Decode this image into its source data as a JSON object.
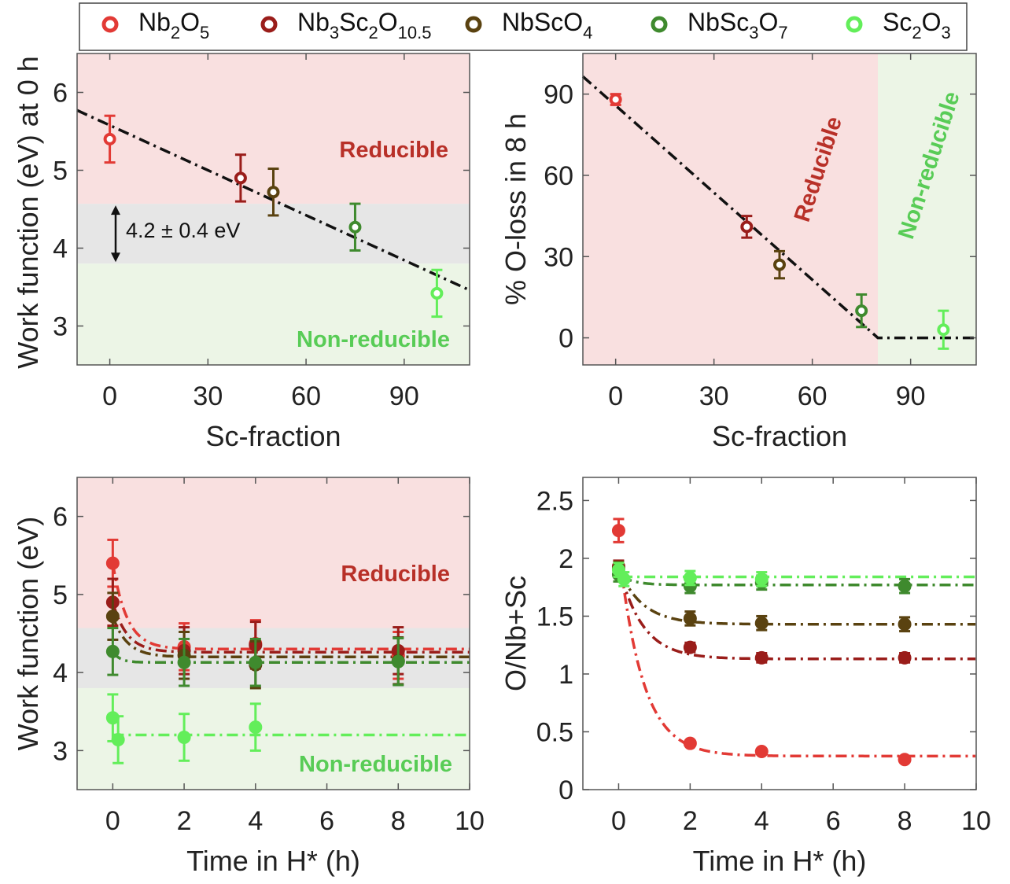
{
  "colors": {
    "Nb2O5": "#e23a35",
    "Nb3Sc2O10.5": "#9a1d1a",
    "NbScO4": "#5a4210",
    "NbSc3O7": "#3f8a2e",
    "Sc2O3": "#63ee5a",
    "reducible_fill": "#f9e0e0",
    "gray_band": "#e6e6e6",
    "nonreducible_fill": "#ecf5e6",
    "reducible_text": "#b83028",
    "nonreducible_text": "#58cc56",
    "fit": "#111111"
  },
  "legend": [
    {
      "key": "Nb2O5",
      "parts": [
        [
          "Nb",
          ""
        ],
        [
          "2",
          "sub"
        ],
        [
          "O",
          ""
        ],
        [
          "5",
          "sub"
        ]
      ]
    },
    {
      "key": "Nb3Sc2O10.5",
      "parts": [
        [
          "Nb",
          ""
        ],
        [
          "3",
          "sub"
        ],
        [
          "Sc",
          ""
        ],
        [
          "2",
          "sub"
        ],
        [
          "O",
          ""
        ],
        [
          "10.5",
          "sub"
        ]
      ]
    },
    {
      "key": "NbScO4",
      "parts": [
        [
          "NbScO",
          ""
        ],
        [
          "4",
          "sub"
        ]
      ]
    },
    {
      "key": "NbSc3O7",
      "parts": [
        [
          "NbSc",
          ""
        ],
        [
          "3",
          "sub"
        ],
        [
          "O",
          ""
        ],
        [
          "7",
          "sub"
        ]
      ]
    },
    {
      "key": "Sc2O3",
      "parts": [
        [
          "Sc",
          ""
        ],
        [
          "2",
          "sub"
        ],
        [
          "O",
          ""
        ],
        [
          "3",
          "sub"
        ]
      ]
    }
  ],
  "chart_data": [
    {
      "id": "wf0",
      "type": "scatter",
      "xlabel": "Sc-fraction",
      "ylabel": "Work function (eV) at 0 h",
      "xlim": [
        -10,
        110
      ],
      "ylim": [
        2.5,
        6.5
      ],
      "xticks": [
        "0",
        "30",
        "60",
        "90"
      ],
      "yticks": [
        "3",
        "4",
        "5",
        "6"
      ],
      "regions": [
        {
          "y": [
            4.57,
            6.5
          ],
          "fill": "reducible_fill",
          "label": "Reducible"
        },
        {
          "y": [
            3.8,
            4.57
          ],
          "fill": "gray_band",
          "label": ""
        },
        {
          "y": [
            2.5,
            3.8
          ],
          "fill": "nonreducible_fill",
          "label": "Non-reducible"
        }
      ],
      "annotation": "4.2 ± 0.4 eV",
      "fit": {
        "style": "dashdot",
        "x": [
          -10,
          110
        ],
        "y": [
          5.77,
          3.46
        ]
      },
      "points": [
        {
          "key": "Nb2O5",
          "x": 0,
          "y": 5.4,
          "err": 0.3
        },
        {
          "key": "Nb3Sc2O10.5",
          "x": 40,
          "y": 4.9,
          "err": 0.3
        },
        {
          "key": "NbScO4",
          "x": 50,
          "y": 4.72,
          "err": 0.3
        },
        {
          "key": "NbSc3O7",
          "x": 75,
          "y": 4.27,
          "err": 0.3
        },
        {
          "key": "Sc2O3",
          "x": 100,
          "y": 3.42,
          "err": 0.3
        }
      ]
    },
    {
      "id": "oloss",
      "type": "scatter",
      "xlabel": "Sc-fraction",
      "ylabel": "% O-loss in 8 h",
      "xlim": [
        -10,
        110
      ],
      "ylim": [
        -10,
        105
      ],
      "xticks": [
        "0",
        "30",
        "60",
        "90"
      ],
      "yticks": [
        "0",
        "30",
        "60",
        "90"
      ],
      "regions": [
        {
          "x": [
            -10,
            80
          ],
          "fill": "reducible_fill",
          "label": "Reducible"
        },
        {
          "x": [
            80,
            110
          ],
          "fill": "nonreducible_fill",
          "label": "Non-reducible"
        }
      ],
      "fit": {
        "style": "dashdot",
        "x": [
          -10,
          80,
          110
        ],
        "y": [
          96.5,
          0,
          0
        ]
      },
      "points": [
        {
          "key": "Nb2O5",
          "x": 0,
          "y": 88,
          "err": 2
        },
        {
          "key": "Nb3Sc2O10.5",
          "x": 40,
          "y": 41,
          "err": 4
        },
        {
          "key": "NbScO4",
          "x": 50,
          "y": 27,
          "err": 5
        },
        {
          "key": "NbSc3O7",
          "x": 75,
          "y": 10,
          "err": 6
        },
        {
          "key": "Sc2O3",
          "x": 100,
          "y": 3,
          "err": 7
        }
      ]
    },
    {
      "id": "wft",
      "type": "line",
      "xlabel": "Time in H* (h)",
      "ylabel": "Work function (eV)",
      "xlim": [
        -1,
        10
      ],
      "ylim": [
        2.5,
        6.5
      ],
      "xticks": [
        "0",
        "2",
        "4",
        "6",
        "8",
        "10"
      ],
      "yticks": [
        "3",
        "4",
        "5",
        "6"
      ],
      "regions": [
        {
          "y": [
            4.57,
            6.5
          ],
          "fill": "reducible_fill",
          "label": "Reducible"
        },
        {
          "y": [
            3.8,
            4.57
          ],
          "fill": "gray_band",
          "label": ""
        },
        {
          "y": [
            2.5,
            3.8
          ],
          "fill": "nonreducible_fill",
          "label": "Non-reducible"
        }
      ],
      "series": [
        {
          "key": "Nb2O5",
          "x": [
            0,
            2,
            4,
            8
          ],
          "y": [
            5.4,
            4.33,
            4.37,
            4.22
          ],
          "err": [
            0.3,
            0.3,
            0.3,
            0.3
          ],
          "fit": {
            "a": 5.4,
            "b": 4.3,
            "k": 2.5
          }
        },
        {
          "key": "Nb3Sc2O10.5",
          "x": [
            0,
            2,
            4,
            8
          ],
          "y": [
            4.9,
            4.28,
            4.35,
            4.28
          ],
          "err": [
            0.3,
            0.3,
            0.3,
            0.3
          ],
          "fit": {
            "a": 4.9,
            "b": 4.26,
            "k": 2.5
          }
        },
        {
          "key": "NbScO4",
          "x": [
            0,
            2,
            4,
            8
          ],
          "y": [
            4.72,
            4.22,
            4.1,
            4.15
          ],
          "err": [
            0.3,
            0.3,
            0.3,
            0.3
          ],
          "fit": {
            "a": 4.72,
            "b": 4.2,
            "k": 2.5
          }
        },
        {
          "key": "NbSc3O7",
          "x": [
            0,
            2,
            4,
            8
          ],
          "y": [
            4.27,
            4.13,
            4.13,
            4.14
          ],
          "err": [
            0.3,
            0.3,
            0.3,
            0.3
          ],
          "fit": {
            "a": 4.27,
            "b": 4.13,
            "k": 5
          }
        },
        {
          "key": "Sc2O3",
          "x": [
            0,
            0.15,
            2,
            4
          ],
          "y": [
            3.42,
            3.14,
            3.17,
            3.3
          ],
          "err": [
            0.3,
            0.3,
            0.3,
            0.3
          ],
          "fit": {
            "a": 3.2,
            "b": 3.2,
            "k": 5
          }
        }
      ]
    },
    {
      "id": "onbsc",
      "type": "line",
      "xlabel": "Time in H* (h)",
      "ylabel": "O/Nb+Sc",
      "xlim": [
        -1,
        10
      ],
      "ylim": [
        0,
        2.7
      ],
      "xticks": [
        "0",
        "2",
        "4",
        "6",
        "8",
        "10"
      ],
      "yticks": [
        "0",
        "0.5",
        "1",
        "1.5",
        "2",
        "2.5"
      ],
      "series": [
        {
          "key": "Nb2O5",
          "x": [
            0,
            2,
            4,
            8
          ],
          "y": [
            2.24,
            0.4,
            0.33,
            0.26
          ],
          "err": [
            0.1,
            0.02,
            0.02,
            0.02
          ],
          "fit": {
            "a": 2.1,
            "b": 0.29,
            "k": 1.5
          }
        },
        {
          "key": "Nb3Sc2O10.5",
          "x": [
            0,
            2,
            4,
            8
          ],
          "y": [
            1.93,
            1.23,
            1.14,
            1.14
          ],
          "err": [
            0.05,
            0.04,
            0.04,
            0.04
          ],
          "fit": {
            "a": 1.93,
            "b": 1.13,
            "k": 1.5
          }
        },
        {
          "key": "NbScO4",
          "x": [
            0,
            2,
            4,
            8
          ],
          "y": [
            1.91,
            1.48,
            1.44,
            1.43
          ],
          "err": [
            0.06,
            0.06,
            0.06,
            0.06
          ],
          "fit": {
            "a": 1.91,
            "b": 1.43,
            "k": 1.5
          }
        },
        {
          "key": "NbSc3O7",
          "x": [
            0,
            2,
            4,
            8
          ],
          "y": [
            1.86,
            1.76,
            1.79,
            1.76
          ],
          "err": [
            0.06,
            0.06,
            0.06,
            0.06
          ],
          "fit": {
            "a": 1.86,
            "b": 1.77,
            "k": 2.5
          }
        },
        {
          "key": "Sc2O3",
          "x": [
            0,
            0.15,
            2,
            4
          ],
          "y": [
            1.9,
            1.82,
            1.83,
            1.82
          ],
          "err": [
            0.06,
            0.06,
            0.06,
            0.06
          ],
          "fit": {
            "a": 1.84,
            "b": 1.84,
            "k": 3
          }
        }
      ]
    }
  ]
}
